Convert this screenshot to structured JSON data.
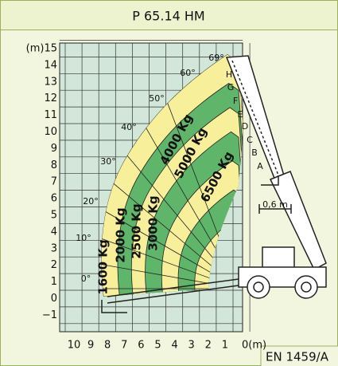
{
  "header": {
    "title": "P 65.14 HM"
  },
  "y_axis": {
    "labels": [
      "(m)15",
      "14",
      "13",
      "12",
      "11",
      "10",
      "9",
      "8",
      "7",
      "6",
      "5",
      "4",
      "3",
      "2",
      "1",
      "0",
      "−1"
    ]
  },
  "x_axis": {
    "labels": [
      "10",
      "9",
      "8",
      "7",
      "6",
      "5",
      "4",
      "3",
      "2",
      "1",
      "0(m)"
    ]
  },
  "load_zones": [
    {
      "label": "1600 Kg"
    },
    {
      "label": "2000 Kg"
    },
    {
      "label": "2500 Kg"
    },
    {
      "label": "3000 Kg"
    },
    {
      "label": "4000 Kg"
    },
    {
      "label": "5000 Kg"
    },
    {
      "label": "6500 Kg"
    }
  ],
  "angles": [
    "0°",
    "10°",
    "20°",
    "30°",
    "40°",
    "50°",
    "60°",
    "69°"
  ],
  "boom_positions": [
    "A",
    "B",
    "C",
    "D",
    "E",
    "F",
    "G",
    "H"
  ],
  "dimension": "0,6 m",
  "standard": "EN 1459/A"
}
